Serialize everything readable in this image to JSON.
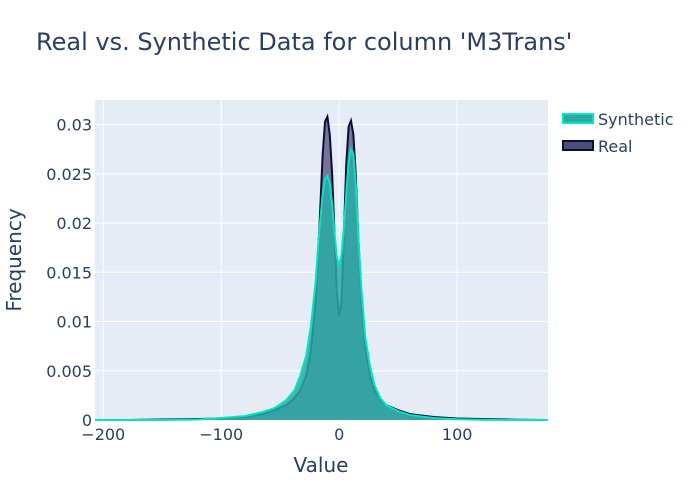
{
  "chart_data": {
    "type": "area",
    "title": "Real vs. Synthetic Data for column 'M3Trans'",
    "xlabel": "Value",
    "ylabel": "Frequency",
    "xlim": [
      -207,
      177
    ],
    "ylim": [
      0,
      0.0325
    ],
    "x_ticks": [
      {
        "value": -200,
        "label": "−200"
      },
      {
        "value": -100,
        "label": "−100"
      },
      {
        "value": 0,
        "label": "0"
      },
      {
        "value": 100,
        "label": "100"
      }
    ],
    "y_ticks": [
      {
        "value": 0,
        "label": "0"
      },
      {
        "value": 0.005,
        "label": "0.005"
      },
      {
        "value": 0.01,
        "label": "0.01"
      },
      {
        "value": 0.015,
        "label": "0.015"
      },
      {
        "value": 0.02,
        "label": "0.02"
      },
      {
        "value": 0.025,
        "label": "0.025"
      },
      {
        "value": 0.03,
        "label": "0.03"
      }
    ],
    "grid": true,
    "legend_position": "top-right",
    "series": [
      {
        "name": "Real",
        "line_color": "#0d0d3a",
        "fill_color": "#4e4e78",
        "x": [
          -207,
          -180,
          -150,
          -120,
          -100,
          -80,
          -65,
          -55,
          -45,
          -38,
          -33,
          -28,
          -24,
          -20,
          -17,
          -14,
          -12,
          -10,
          -8,
          -6,
          -4,
          -2,
          0,
          2,
          4,
          6,
          8,
          10,
          12,
          14,
          16,
          19,
          22,
          26,
          30,
          35,
          40,
          50,
          60,
          80,
          100,
          120,
          150,
          177
        ],
        "y": [
          0,
          0,
          5e-05,
          0.0001,
          0.00015,
          0.0003,
          0.0006,
          0.001,
          0.0015,
          0.0022,
          0.003,
          0.0045,
          0.007,
          0.012,
          0.019,
          0.027,
          0.0303,
          0.0308,
          0.029,
          0.025,
          0.019,
          0.013,
          0.0106,
          0.012,
          0.019,
          0.026,
          0.0298,
          0.0304,
          0.029,
          0.025,
          0.019,
          0.012,
          0.0075,
          0.0045,
          0.003,
          0.002,
          0.0015,
          0.001,
          0.0006,
          0.0003,
          0.00015,
          0.0001,
          3e-05,
          0
        ]
      },
      {
        "name": "Synthetic",
        "line_color": "#00e5c4",
        "fill_color": "#2aaaa4",
        "x": [
          -207,
          -180,
          -150,
          -120,
          -100,
          -80,
          -65,
          -55,
          -45,
          -38,
          -33,
          -28,
          -24,
          -20,
          -17,
          -14,
          -12,
          -10,
          -8,
          -6,
          -4,
          -2,
          0,
          2,
          4,
          6,
          8,
          10,
          12,
          14,
          16,
          19,
          22,
          26,
          30,
          35,
          40,
          50,
          60,
          80,
          100,
          120,
          150,
          177
        ],
        "y": [
          0,
          0,
          0,
          5e-05,
          0.0002,
          0.0004,
          0.0008,
          0.0012,
          0.002,
          0.003,
          0.0045,
          0.0065,
          0.0095,
          0.014,
          0.019,
          0.023,
          0.0245,
          0.0248,
          0.024,
          0.022,
          0.019,
          0.0165,
          0.0158,
          0.0168,
          0.0195,
          0.023,
          0.0262,
          0.0275,
          0.027,
          0.024,
          0.019,
          0.013,
          0.0085,
          0.0055,
          0.0035,
          0.0022,
          0.0015,
          0.0009,
          0.0005,
          0.0002,
          8e-05,
          3e-05,
          0,
          0
        ]
      }
    ]
  }
}
